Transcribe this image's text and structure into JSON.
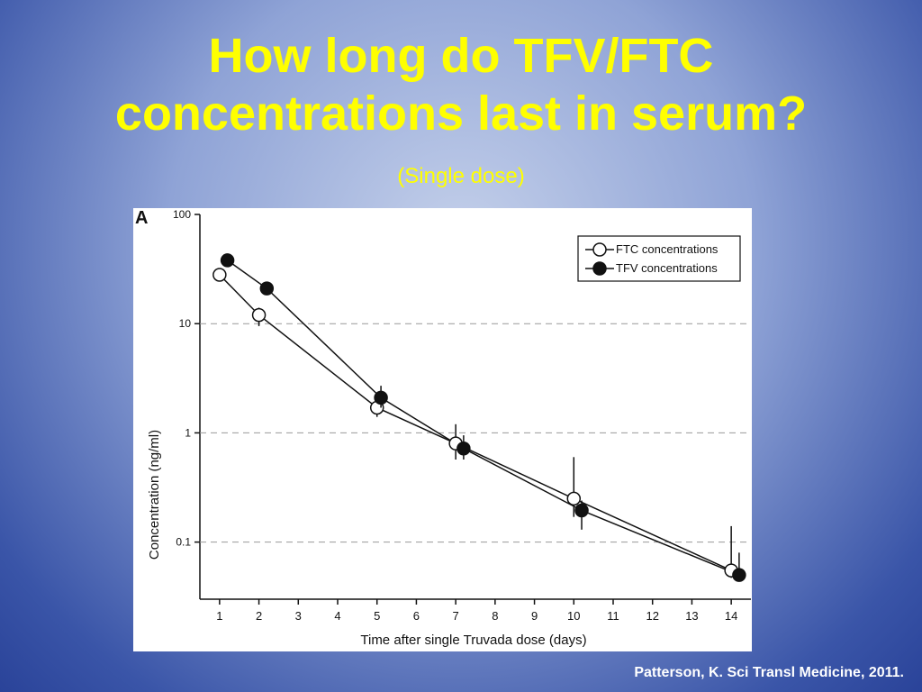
{
  "title": "How long do TFV/FTC concentrations last in serum?",
  "subtitle": "(Single dose)",
  "citation": "Patterson, K.  Sci Transl Medicine, 2011.",
  "chart_data": {
    "type": "line",
    "panel_label": "A",
    "x_label": "Time after single Truvada dose (days)",
    "y_label": "Concentration (ng/ml)",
    "log_y": true,
    "grid": true,
    "legend_position": "upper right",
    "xlim": [
      0.5,
      14.5
    ],
    "xticks": [
      1,
      2,
      3,
      4,
      5,
      6,
      7,
      8,
      9,
      10,
      11,
      12,
      13,
      14
    ],
    "ylim": [
      0.03,
      100
    ],
    "yticks": [
      100,
      10,
      1,
      0.1
    ],
    "series": [
      {
        "name": "FTC concentrations",
        "marker": "open",
        "color": "#111111",
        "x": [
          1,
          2,
          5,
          7,
          10,
          14
        ],
        "values": [
          28,
          12,
          1.7,
          0.8,
          0.25,
          0.055
        ],
        "error_low": [
          null,
          9.5,
          1.4,
          0.57,
          0.17,
          0.047
        ],
        "error_high": [
          null,
          14,
          1.9,
          1.2,
          0.6,
          0.14
        ]
      },
      {
        "name": "TFV concentrations",
        "marker": "filled",
        "color": "#111111",
        "x": [
          1.2,
          2.2,
          5.1,
          7.2,
          10.2,
          14.2
        ],
        "values": [
          38,
          21,
          2.1,
          0.72,
          0.195,
          0.05
        ],
        "error_low": [
          null,
          null,
          1.7,
          0.57,
          0.13,
          0.045
        ],
        "error_high": [
          null,
          null,
          2.7,
          0.95,
          0.24,
          0.08
        ]
      }
    ]
  }
}
